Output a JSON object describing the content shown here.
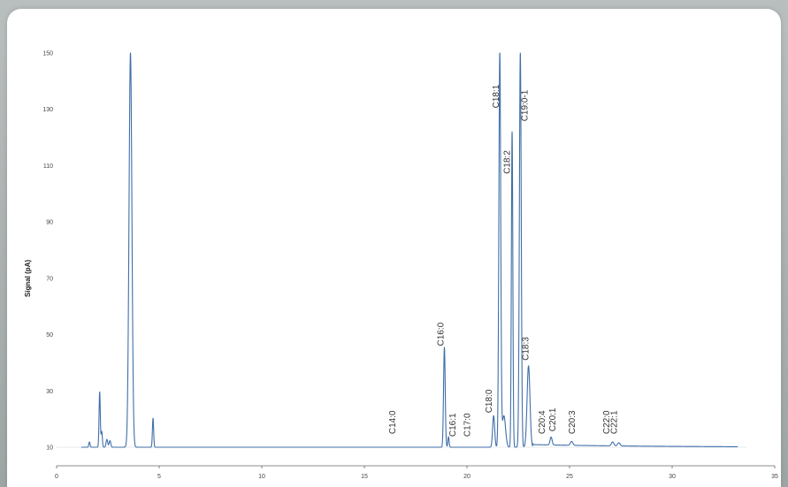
{
  "chart_data": {
    "type": "line",
    "title": "",
    "xlabel": "",
    "ylabel": "Signal (pA)",
    "xlim": [
      0,
      35
    ],
    "ylim": [
      0,
      150
    ],
    "x_ticks": [
      "0",
      "5",
      "10",
      "15",
      "20",
      "25",
      "30",
      "35"
    ],
    "y_ticks": [
      "10",
      "30",
      "50",
      "70",
      "90",
      "110",
      "130",
      "150"
    ],
    "grid": false,
    "series": [
      {
        "color": "#3f6fa8",
        "peaks": [
          {
            "x": 1.6,
            "h": 2,
            "w": 0.03
          },
          {
            "x": 2.1,
            "h": 21,
            "w": 0.03
          },
          {
            "x": 2.2,
            "h": 6,
            "w": 0.03
          },
          {
            "x": 2.45,
            "h": 3,
            "w": 0.04
          },
          {
            "x": 2.6,
            "h": 2.5,
            "w": 0.04
          },
          {
            "x": 3.6,
            "h": 150,
            "w": 0.07
          },
          {
            "x": 4.7,
            "h": 11,
            "w": 0.03
          },
          {
            "x": 18.9,
            "h": 38,
            "w": 0.04
          },
          {
            "x": 19.1,
            "h": 4,
            "w": 0.03
          },
          {
            "x": 21.3,
            "h": 12,
            "w": 0.05
          },
          {
            "x": 21.6,
            "h": 150,
            "w": 0.045
          },
          {
            "x": 21.8,
            "h": 12,
            "w": 0.08
          },
          {
            "x": 22.2,
            "h": 120,
            "w": 0.035
          },
          {
            "x": 22.6,
            "h": 150,
            "w": 0.045
          },
          {
            "x": 23.0,
            "h": 31,
            "w": 0.07
          },
          {
            "x": 24.1,
            "h": 3,
            "w": 0.05
          },
          {
            "x": 25.1,
            "h": 1.5,
            "w": 0.06
          },
          {
            "x": 27.1,
            "h": 1.5,
            "w": 0.06
          },
          {
            "x": 27.4,
            "h": 1.2,
            "w": 0.06
          }
        ]
      }
    ],
    "annotations": [
      {
        "text": "C14:0",
        "x": 16.5,
        "y": 5
      },
      {
        "text": "C16:0",
        "x": 18.85,
        "y": 38.5
      },
      {
        "text": "C16:1",
        "x": 19.45,
        "y": 4
      },
      {
        "text": "C17:0",
        "x": 20.15,
        "y": 4
      },
      {
        "text": "C18:0",
        "x": 21.2,
        "y": 13
      },
      {
        "text": "C18:1",
        "x": 21.55,
        "y": 129
      },
      {
        "text": "C18:2",
        "x": 22.1,
        "y": 104
      },
      {
        "text": "C18:3",
        "x": 23.0,
        "y": 33
      },
      {
        "text": "C19:0-1",
        "x": 22.95,
        "y": 124
      },
      {
        "text": "C20:4",
        "x": 23.8,
        "y": 5
      },
      {
        "text": "C20:1",
        "x": 24.3,
        "y": 6
      },
      {
        "text": "C20:3",
        "x": 25.25,
        "y": 5
      },
      {
        "text": "C22:0",
        "x": 26.95,
        "y": 5
      },
      {
        "text": "C22:1",
        "x": 27.3,
        "y": 5
      }
    ]
  }
}
